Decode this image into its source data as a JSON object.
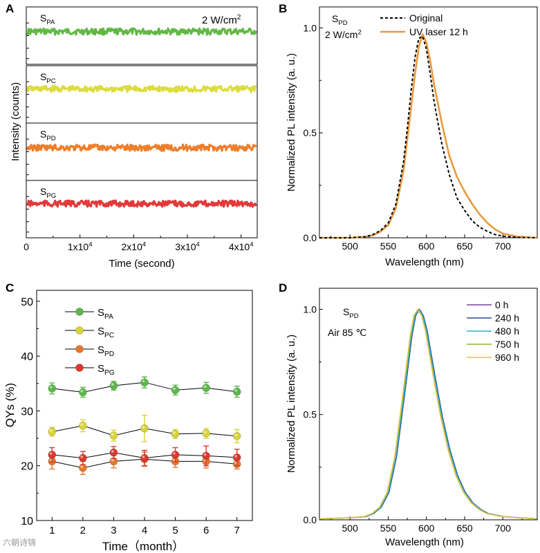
{
  "watermark": "六朝诗锦",
  "chart_data": [
    {
      "panel": "A",
      "type": "line",
      "xlabel": "Time (second)",
      "ylabel": "Intensity (counts)",
      "xlim": [
        0,
        43000
      ],
      "x_ticks": [
        0,
        10000,
        20000,
        30000,
        40000
      ],
      "x_tick_labels": [
        {
          "b": "0"
        },
        {
          "b": "1x10",
          "s": "4"
        },
        {
          "b": "2x10",
          "s": "4"
        },
        {
          "b": "3x10",
          "s": "4"
        },
        {
          "b": "4x10",
          "s": "4"
        }
      ],
      "annotation": {
        "b": "2 W/cm",
        "s": "2"
      },
      "subpanels": [
        {
          "label": {
            "b": "S",
            "s": "PA"
          },
          "color": "#62b844",
          "level": 0.55
        },
        {
          "label": {
            "b": "S",
            "s": "PC"
          },
          "color": "#dcdc3c",
          "level": 0.55
        },
        {
          "label": {
            "b": "S",
            "s": "PD"
          },
          "color": "#ee7e2a",
          "level": 0.55
        },
        {
          "label": {
            "b": "S",
            "s": "PG"
          },
          "color": "#e03a3a",
          "level": 0.55
        }
      ]
    },
    {
      "panel": "B",
      "type": "line",
      "xlabel": "Wavelength (nm)",
      "ylabel": "Normalized PL intensity (a. u.)",
      "xlim": [
        460,
        745
      ],
      "ylim": [
        0,
        1.1
      ],
      "x_ticks": [
        500,
        550,
        600,
        650,
        700
      ],
      "y_ticks": [
        0.0,
        0.5,
        1.0
      ],
      "y_tick_labels": [
        "0.0",
        "0.5",
        "1.0"
      ],
      "annotations": [
        {
          "b": "S",
          "s": "PD"
        },
        {
          "b": "2 W/cm",
          "s": "2"
        }
      ],
      "series": [
        {
          "name": "Original",
          "color": "#000000",
          "dash": true,
          "x": [
            460,
            500,
            520,
            530,
            540,
            550,
            560,
            570,
            575,
            580,
            585,
            590,
            595,
            600,
            605,
            610,
            620,
            630,
            640,
            650,
            660,
            670,
            680,
            690,
            700,
            720,
            745
          ],
          "y": [
            0.0,
            0.0,
            0.005,
            0.015,
            0.035,
            0.07,
            0.16,
            0.36,
            0.52,
            0.7,
            0.86,
            0.95,
            0.96,
            0.9,
            0.78,
            0.65,
            0.45,
            0.3,
            0.19,
            0.13,
            0.08,
            0.05,
            0.03,
            0.015,
            0.008,
            0.002,
            0.0
          ]
        },
        {
          "name": "UV laser 12 h",
          "color": "#e89a3c",
          "dash": false,
          "x": [
            460,
            500,
            520,
            530,
            540,
            550,
            560,
            570,
            580,
            585,
            590,
            595,
            600,
            605,
            610,
            620,
            630,
            640,
            650,
            660,
            670,
            680,
            690,
            700,
            720,
            745
          ],
          "y": [
            0.0,
            0.0,
            0.005,
            0.012,
            0.03,
            0.06,
            0.14,
            0.32,
            0.62,
            0.78,
            0.91,
            0.97,
            0.93,
            0.84,
            0.73,
            0.55,
            0.39,
            0.29,
            0.22,
            0.16,
            0.11,
            0.07,
            0.04,
            0.02,
            0.005,
            0.0
          ]
        }
      ]
    },
    {
      "panel": "C",
      "type": "line",
      "xlabel": "Time（month）",
      "ylabel": "QYs (%)",
      "xlim": [
        0.5,
        7.5
      ],
      "ylim": [
        10,
        52
      ],
      "x_ticks": [
        1,
        2,
        3,
        4,
        5,
        6,
        7
      ],
      "y_ticks": [
        10,
        20,
        30,
        40,
        50
      ],
      "categories": [
        "1",
        "2",
        "3",
        "4",
        "5",
        "6",
        "7"
      ],
      "series": [
        {
          "name": {
            "b": "S",
            "s": "PA"
          },
          "color": "#5cb84a",
          "values": [
            34.1,
            33.4,
            34.6,
            35.2,
            33.8,
            34.2,
            33.5
          ],
          "errors": [
            1.0,
            0.9,
            0.8,
            1.0,
            0.9,
            1.0,
            1.0
          ]
        },
        {
          "name": {
            "b": "S",
            "s": "PC"
          },
          "color": "#d9d33c",
          "values": [
            26.2,
            27.3,
            25.5,
            26.8,
            25.8,
            25.9,
            25.4
          ],
          "errors": [
            0.8,
            1.1,
            1.0,
            2.4,
            0.8,
            0.9,
            1.2
          ]
        },
        {
          "name": {
            "b": "S",
            "s": "PD"
          },
          "color": "#e5762c",
          "values": [
            20.8,
            19.6,
            20.8,
            21.2,
            20.8,
            20.8,
            20.3
          ],
          "errors": [
            1.4,
            1.2,
            1.2,
            1.3,
            1.1,
            1.2,
            0.9
          ]
        },
        {
          "name": {
            "b": "S",
            "s": "PG"
          },
          "color": "#d83a2e",
          "values": [
            22.0,
            21.4,
            22.4,
            21.4,
            22.0,
            21.8,
            21.5
          ],
          "errors": [
            1.3,
            1.2,
            1.1,
            1.4,
            1.3,
            1.8,
            1.5
          ]
        }
      ]
    },
    {
      "panel": "D",
      "type": "line",
      "xlabel": "Wavelength (nm)",
      "ylabel": "Normalized PL intensity (a. u.)",
      "xlim": [
        460,
        745
      ],
      "ylim": [
        0,
        1.1
      ],
      "x_ticks": [
        500,
        550,
        600,
        650,
        700
      ],
      "y_ticks": [
        0.0,
        0.5,
        1.0
      ],
      "y_tick_labels": [
        "0.0",
        "0.5",
        "1.0"
      ],
      "annotations": [
        {
          "b": "S",
          "s": "PD"
        },
        {
          "b": "Air 85 ℃",
          "s": ""
        }
      ],
      "profile": {
        "x": [
          460,
          500,
          520,
          530,
          540,
          550,
          560,
          570,
          580,
          585,
          590,
          595,
          600,
          610,
          620,
          630,
          640,
          650,
          660,
          670,
          680,
          700,
          720,
          745
        ],
        "y": [
          0.005,
          0.01,
          0.015,
          0.03,
          0.06,
          0.13,
          0.3,
          0.58,
          0.87,
          0.97,
          1.0,
          0.97,
          0.9,
          0.69,
          0.49,
          0.33,
          0.21,
          0.13,
          0.08,
          0.05,
          0.03,
          0.015,
          0.01,
          0.005
        ]
      },
      "series": [
        {
          "name": "0 h",
          "color": "#7b3f98",
          "shift": 0.6
        },
        {
          "name": "240 h",
          "color": "#2e4a9a",
          "shift": 0.9
        },
        {
          "name": "480 h",
          "color": "#27b0d0",
          "shift": 0.0
        },
        {
          "name": "750 h",
          "color": "#86b834",
          "shift": -1.0
        },
        {
          "name": "960 h",
          "color": "#e0c24a",
          "shift": -1.4
        }
      ]
    }
  ],
  "panel_letters": [
    "A",
    "B",
    "C",
    "D"
  ]
}
